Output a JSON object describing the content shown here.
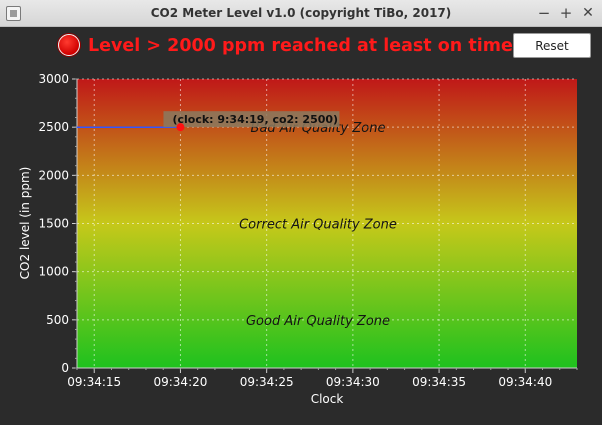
{
  "window": {
    "title": "CO2 Meter Level v1.0 (copyright TiBo, 2017)",
    "minimize_glyph": "−",
    "maximize_glyph": "+",
    "close_glyph": "✕"
  },
  "status": {
    "message": "Level > 2000 ppm reached at least on time",
    "indicator_color": "#e00000",
    "text_color": "#ff1a1a"
  },
  "toolbar": {
    "reset_label": "Reset"
  },
  "chart_data": {
    "type": "line",
    "xlabel": "Clock",
    "ylabel": "CO2 level (in ppm)",
    "ylim": [
      0,
      3000
    ],
    "xlim": [
      "09:34:14",
      "09:34:43"
    ],
    "yticks": [
      0,
      500,
      1000,
      1500,
      2000,
      2500,
      3000
    ],
    "xticks": [
      "09:34:15",
      "09:34:20",
      "09:34:25",
      "09:34:30",
      "09:34:35",
      "09:34:40"
    ],
    "grid": true,
    "series": [
      {
        "color": "#3355ff",
        "points": [
          {
            "x": "09:34:14",
            "y": 2500
          },
          {
            "x": "09:34:20",
            "y": 2500
          }
        ]
      }
    ],
    "annotation": {
      "text": "(clock: 9:34:19, co2: 2500)",
      "x": "09:34:20",
      "y": 2500
    },
    "zones": [
      {
        "label": "Bad Air Quality Zone",
        "y": 2500
      },
      {
        "label": "Correct Air Quality Zone",
        "y": 1500
      },
      {
        "label": "Good Air Quality Zone",
        "y": 500
      }
    ],
    "background_gradient": [
      "#1ec21e",
      "#c6c81a",
      "#c01818"
    ]
  }
}
